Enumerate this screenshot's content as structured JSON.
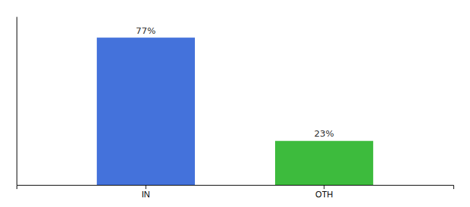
{
  "chart_data": {
    "type": "bar",
    "categories": [
      "IN",
      "OTH"
    ],
    "values": [
      77,
      23
    ],
    "value_labels": [
      "77%",
      "23%"
    ],
    "colors": [
      "#4472db",
      "#3dbb3d"
    ],
    "ylim": [
      0,
      88
    ],
    "data_labels": true,
    "tick_labels": "x"
  }
}
